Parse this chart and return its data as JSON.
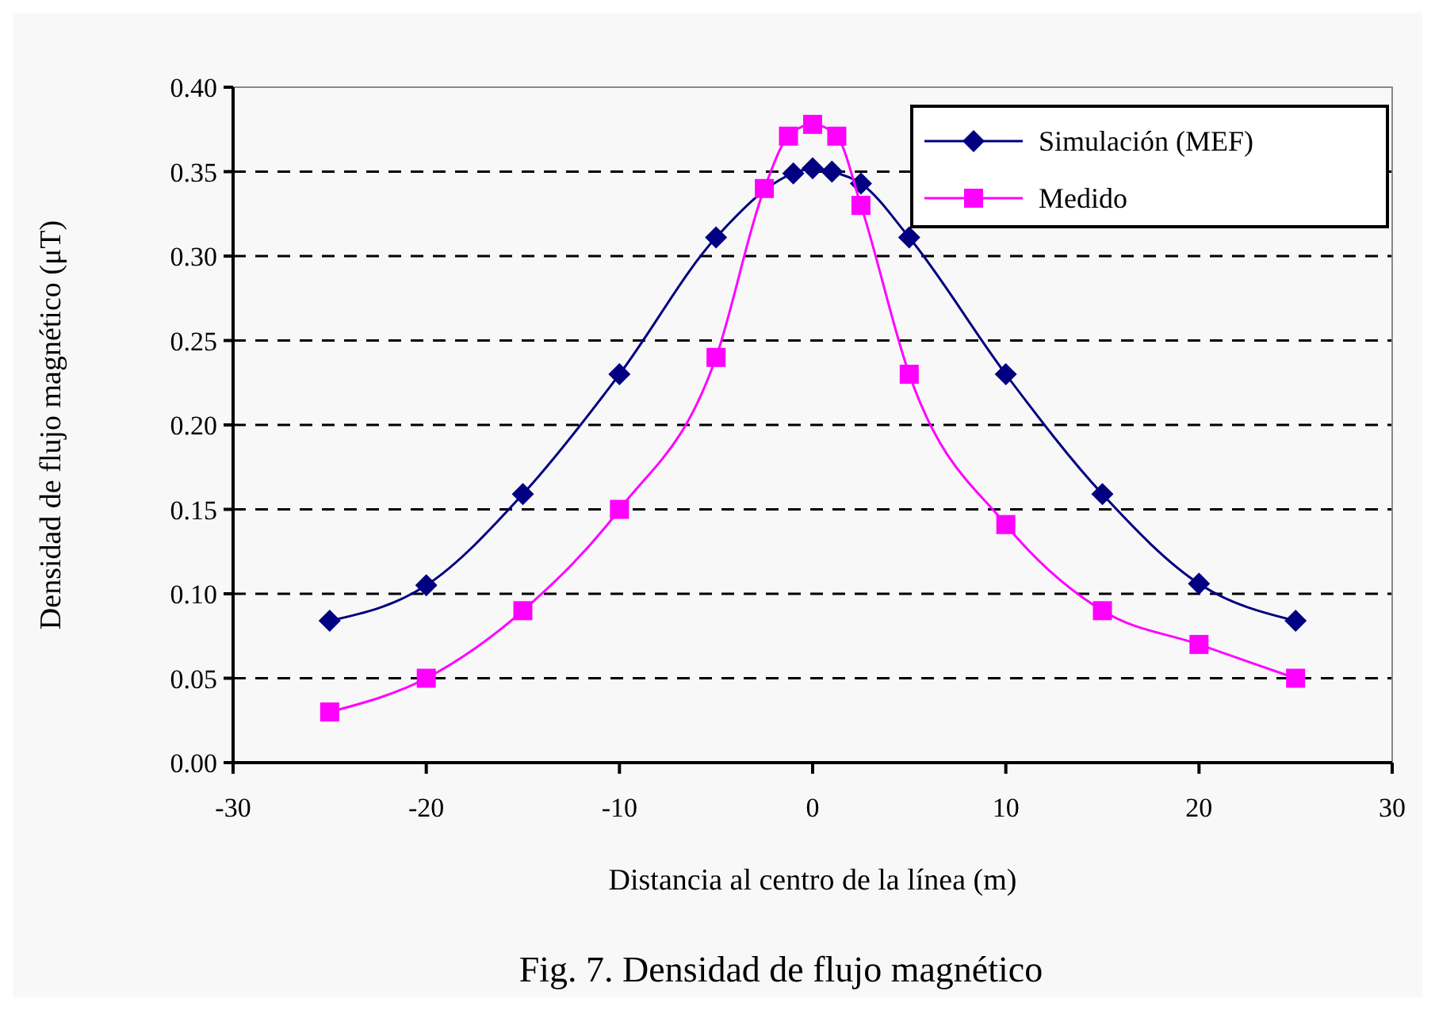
{
  "chart_data": {
    "type": "line",
    "xlabel": "Distancia al centro de la línea (m)",
    "ylabel": "Densidad de flujo magnético (μT)",
    "xlim": [
      -30,
      30
    ],
    "xticks": [
      -30,
      -20,
      -10,
      0,
      10,
      20,
      30
    ],
    "ylim": [
      0,
      0.4
    ],
    "yticks": [
      {
        "value": 0,
        "label": "0.00"
      },
      {
        "value": 0.05,
        "label": "0.05"
      },
      {
        "value": 0.1,
        "label": "0.10"
      },
      {
        "value": 0.15,
        "label": "0.15"
      },
      {
        "value": 0.2,
        "label": "0.20"
      },
      {
        "value": 0.25,
        "label": "0.25"
      },
      {
        "value": 0.3,
        "label": "0.30"
      },
      {
        "value": 0.35,
        "label": "0.35"
      },
      {
        "value": 0.4,
        "label": "0.40"
      }
    ],
    "grid": "y",
    "legend": "top right",
    "series": [
      {
        "name": "Simulación (MEF)",
        "color": "#000080",
        "marker": "diamond",
        "x": [
          -25,
          -20,
          -15,
          -10,
          -5,
          -2.5,
          -1,
          0,
          1,
          2.5,
          5,
          10,
          15,
          20,
          25
        ],
        "values": [
          0.084,
          0.105,
          0.159,
          0.23,
          0.311,
          null,
          0.349,
          0.352,
          0.35,
          0.343,
          0.311,
          0.23,
          0.159,
          0.106,
          0.084
        ]
      },
      {
        "name": "Medido",
        "color": "#ff00ff",
        "marker": "square",
        "x": [
          -25,
          -20,
          -15,
          -10,
          -5,
          -2.5,
          -1.25,
          0,
          1.25,
          2.5,
          5,
          10,
          15,
          20,
          25
        ],
        "values": [
          0.03,
          0.05,
          0.09,
          0.15,
          0.24,
          0.34,
          0.371,
          0.378,
          0.371,
          0.33,
          0.23,
          0.141,
          0.09,
          0.07,
          0.05
        ]
      }
    ],
    "annotations": [
      "Fig. 7. Densidad de flujo magnético"
    ]
  }
}
